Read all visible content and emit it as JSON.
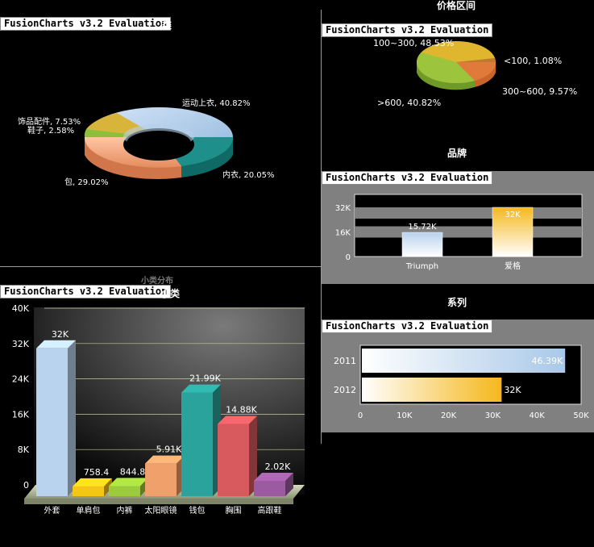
{
  "watermark": "FusionCharts v3.2 Evaluation",
  "colors": {
    "gray_panel": "#808080",
    "blue": "#a9c8e8",
    "orange": "#f5b81c",
    "teal": "#1f8f8c",
    "salmon": "#f2a57f",
    "green": "#8dbf3a"
  },
  "charts": {
    "category_donut": {
      "title_fragment": "类",
      "chart_data": {
        "type": "pie",
        "style": "3d-donut",
        "slices": [
          {
            "label": "运动上衣",
            "value": 40.82,
            "text": "运动上衣, 40.82%",
            "color": "#a9c8e8"
          },
          {
            "label": "内衣",
            "value": 20.05,
            "text": "内衣, 20.05%",
            "color": "#1f8f8c"
          },
          {
            "label": "包",
            "value": 29.02,
            "text": "包, 29.02%",
            "color": "#f2a57f"
          },
          {
            "label": "鞋子",
            "value": 2.58,
            "text": "鞋子, 2.58%",
            "color": "#8dbf3a"
          },
          {
            "label": "饰品配件",
            "value": 7.53,
            "text": "饰品配件, 7.53%",
            "color": "#d9b43a"
          }
        ]
      }
    },
    "price_pie": {
      "title": "价格区间",
      "chart_data": {
        "type": "pie",
        "style": "3d",
        "slices": [
          {
            "label": "100~300",
            "value": 48.53,
            "text": "100~300, 48.53%",
            "color": "#e0b62e"
          },
          {
            "label": "<100",
            "value": 1.08,
            "text": "<100, 1.08%",
            "color": "#c07a30"
          },
          {
            "label": "300~600",
            "value": 9.57,
            "text": "300~600, 9.57%",
            "color": "#e07a3a"
          },
          {
            "label": ">600",
            "value": 40.82,
            "text": ">600, 40.82%",
            "color": "#9cc43c"
          }
        ]
      }
    },
    "brand_bar": {
      "title": "品牌",
      "chart_data": {
        "type": "bar",
        "categories": [
          "Triumph",
          "爱格"
        ],
        "values": [
          15720,
          32000
        ],
        "value_labels": [
          "15.72K",
          "32K"
        ],
        "y_ticks": [
          "0",
          "16K",
          "32K"
        ],
        "ylim": [
          0,
          32000
        ]
      }
    },
    "series_bar": {
      "title": "系列",
      "chart_data": {
        "type": "bar",
        "orientation": "horizontal",
        "categories": [
          "2011",
          "2012"
        ],
        "values": [
          46390,
          32000
        ],
        "value_labels": [
          "46.39K",
          "32K"
        ],
        "x_ticks": [
          "0",
          "10K",
          "20K",
          "30K",
          "40K",
          "50K"
        ],
        "xlim": [
          0,
          50000
        ]
      }
    },
    "subcategory_bar": {
      "title_faint": "小类分布",
      "title_fragment": "小类",
      "chart_data": {
        "type": "bar",
        "style": "3d-column",
        "categories": [
          "外套",
          "单肩包",
          "内裤",
          "太阳眼镜",
          "钱包",
          "胸围",
          "高跟鞋"
        ],
        "values": [
          32000,
          758.4,
          844.8,
          5910,
          21990,
          14880,
          2020
        ],
        "value_labels": [
          "32K",
          "758.4",
          "844.8",
          "5.91K",
          "21.99K",
          "14.88K",
          "2.02K"
        ],
        "colors": [
          "#b9d2ee",
          "#f5c518",
          "#9ccb3b",
          "#f0a06a",
          "#2aa39c",
          "#d85a5f",
          "#9c5aa0"
        ],
        "y_ticks": [
          "0",
          "8K",
          "16K",
          "24K",
          "32K",
          "40K"
        ],
        "ylim": [
          0,
          40000
        ]
      }
    }
  }
}
